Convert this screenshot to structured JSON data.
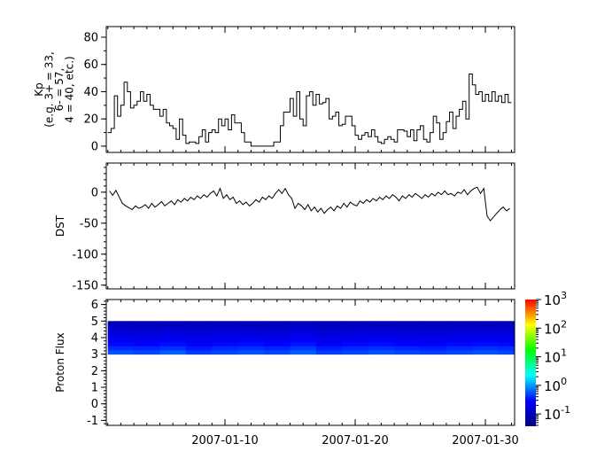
{
  "chart_data": [
    {
      "type": "line",
      "step": true,
      "ylabel_lines": [
        "Kp",
        "(e.g. 3+ = 33,",
        "6- = 57,",
        "4 = 40, etc.)"
      ],
      "ylim": [
        -4.6,
        87.8
      ],
      "yticks": [
        0,
        20,
        40,
        60,
        80
      ],
      "yticklabels": [
        "0",
        "20",
        "40",
        "60",
        "80"
      ],
      "yminor": 10,
      "x_start": "2007-01-01T00:00",
      "x_step_hours": 6,
      "values": [
        10,
        13,
        37,
        22,
        30,
        47,
        40,
        28,
        30,
        33,
        40,
        33,
        38,
        30,
        27,
        27,
        22,
        27,
        17,
        15,
        13,
        5,
        20,
        8,
        2,
        3,
        3,
        2,
        7,
        12,
        3,
        10,
        12,
        10,
        20,
        15,
        20,
        12,
        23,
        17,
        17,
        10,
        3,
        3,
        0,
        0,
        0,
        0,
        0,
        0,
        0,
        3,
        3,
        15,
        25,
        25,
        35,
        22,
        40,
        20,
        15,
        37,
        40,
        30,
        38,
        31,
        32,
        35,
        20,
        22,
        25,
        15,
        16,
        22,
        22,
        15,
        8,
        5,
        8,
        10,
        7,
        12,
        7,
        3,
        2,
        5,
        7,
        5,
        3,
        12,
        12,
        11,
        7,
        12,
        4,
        12,
        15,
        5,
        3,
        10,
        22,
        17,
        5,
        10,
        18,
        25,
        13,
        22,
        27,
        33,
        20,
        53,
        45,
        38,
        40,
        33,
        38,
        33,
        40,
        33,
        37,
        32,
        38,
        32
      ],
      "color": "#000000"
    },
    {
      "type": "line",
      "ylabel_lines": [
        "DST"
      ],
      "ylim": [
        -156,
        47
      ],
      "yticks": [
        0,
        -50,
        -100,
        -150
      ],
      "yticklabels": [
        "0",
        "-50",
        "-100",
        "-150"
      ],
      "yminor": 10,
      "x_start": "2007-01-01T00:00",
      "x_step_hours": 6,
      "values": [
        2,
        -5,
        3,
        -8,
        -18,
        -22,
        -25,
        -28,
        -22,
        -26,
        -24,
        -20,
        -26,
        -18,
        -24,
        -20,
        -15,
        -22,
        -18,
        -14,
        -20,
        -12,
        -16,
        -10,
        -14,
        -8,
        -12,
        -6,
        -10,
        -4,
        -8,
        -2,
        2,
        -6,
        6,
        -10,
        -4,
        -12,
        -8,
        -18,
        -14,
        -20,
        -16,
        -22,
        -18,
        -12,
        -16,
        -8,
        -12,
        -6,
        -10,
        -2,
        4,
        -2,
        6,
        -4,
        -10,
        -26,
        -18,
        -22,
        -28,
        -20,
        -30,
        -24,
        -32,
        -26,
        -34,
        -28,
        -24,
        -30,
        -22,
        -26,
        -18,
        -24,
        -16,
        -20,
        -22,
        -14,
        -18,
        -12,
        -16,
        -10,
        -14,
        -8,
        -12,
        -6,
        -10,
        -4,
        -8,
        -14,
        -6,
        -10,
        -4,
        -8,
        -2,
        -6,
        -10,
        -4,
        -8,
        -2,
        -6,
        0,
        -4,
        2,
        -4,
        -2,
        -6,
        0,
        -2,
        4,
        -4,
        2,
        6,
        8,
        -2,
        6,
        -38,
        -46,
        -40,
        -34,
        -28,
        -24,
        -30,
        -26
      ],
      "color": "#000000"
    },
    {
      "type": "heatmap",
      "ylabel_lines": [
        "Proton Flux"
      ],
      "ylim": [
        -1.3,
        6.3
      ],
      "yticks": [
        -1,
        0,
        1,
        2,
        3,
        4,
        5,
        6
      ],
      "yticklabels": [
        "-1",
        "0",
        "1",
        "2",
        "3",
        "4",
        "5",
        "6"
      ],
      "yminor": 0.2,
      "y_bins": [
        3.0,
        3.25,
        3.5,
        3.75,
        4.0,
        4.25,
        4.5,
        4.75,
        5.0
      ],
      "x_start": "2007-01-01T00:00",
      "x_step_hours": 48,
      "z": [
        [
          0.55,
          0.5,
          0.6,
          0.45,
          0.5,
          0.55,
          0.5,
          0.6,
          0.45,
          0.5,
          0.55,
          0.5,
          0.45,
          0.5,
          0.55,
          0.5
        ],
        [
          0.4,
          0.38,
          0.42,
          0.35,
          0.4,
          0.42,
          0.38,
          0.45,
          0.36,
          0.4,
          0.42,
          0.38,
          0.36,
          0.4,
          0.42,
          0.4
        ],
        [
          0.3,
          0.28,
          0.32,
          0.27,
          0.3,
          0.31,
          0.29,
          0.33,
          0.27,
          0.3,
          0.31,
          0.29,
          0.27,
          0.3,
          0.32,
          0.3
        ],
        [
          0.24,
          0.22,
          0.25,
          0.21,
          0.23,
          0.24,
          0.22,
          0.26,
          0.21,
          0.23,
          0.24,
          0.22,
          0.21,
          0.23,
          0.25,
          0.23
        ],
        [
          0.19,
          0.18,
          0.2,
          0.17,
          0.19,
          0.19,
          0.18,
          0.2,
          0.17,
          0.18,
          0.19,
          0.18,
          0.17,
          0.18,
          0.2,
          0.19
        ],
        [
          0.15,
          0.14,
          0.16,
          0.14,
          0.15,
          0.15,
          0.14,
          0.16,
          0.14,
          0.15,
          0.15,
          0.14,
          0.14,
          0.15,
          0.16,
          0.15
        ],
        [
          0.12,
          0.11,
          0.12,
          0.11,
          0.12,
          0.12,
          0.11,
          0.13,
          0.11,
          0.12,
          0.12,
          0.11,
          0.11,
          0.12,
          0.12,
          0.12
        ],
        [
          0.09,
          0.09,
          0.1,
          0.09,
          0.09,
          0.1,
          0.09,
          0.1,
          0.09,
          0.09,
          0.1,
          0.09,
          0.09,
          0.09,
          0.1,
          0.09
        ]
      ],
      "colorbar": {
        "scale": "log",
        "range_log10": [
          -1.43,
          3
        ],
        "ticks_log10": [
          -1,
          0,
          1,
          2,
          3
        ],
        "ticklabels": [
          {
            "base": "10",
            "exp": "-1"
          },
          {
            "base": "10",
            "exp": "0"
          },
          {
            "base": "10",
            "exp": "1"
          },
          {
            "base": "10",
            "exp": "2"
          },
          {
            "base": "10",
            "exp": "3"
          }
        ],
        "colormap": [
          "#00007f",
          "#0000ff",
          "#00ffff",
          "#00ff00",
          "#ffff00",
          "#ff0000"
        ]
      }
    }
  ],
  "x_axis": {
    "xlim": [
      "2006-12-31T21:12",
      "2007-02-01T05:50"
    ],
    "major_ticks": [
      "2007-01-10",
      "2007-01-20",
      "2007-01-30"
    ],
    "major_ticklabels": [
      "2007-01-10",
      "2007-01-20",
      "2007-01-30"
    ],
    "minor_tick_days": 1
  }
}
